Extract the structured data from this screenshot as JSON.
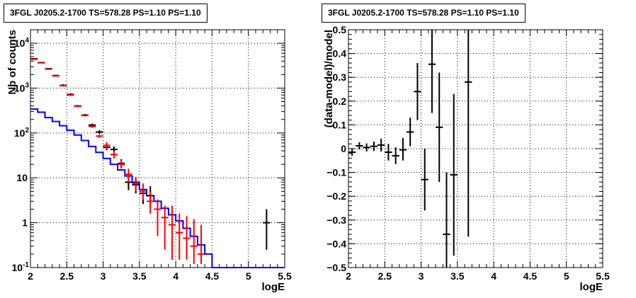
{
  "colors": {
    "data": "#000000",
    "model": "#0000ff",
    "model_points": "#ff0000",
    "grid": "#000000"
  },
  "chart_data": [
    {
      "type": "line",
      "title": "3FGL J0205.2-1700 TS=578.28 PS=1.10 PS=1.10",
      "xlabel": "logE",
      "ylabel": "Nb of counts",
      "xlim": [
        2,
        5.5
      ],
      "ylim": [
        0.1,
        20000
      ],
      "yscale": "log",
      "grid": true,
      "x_ticks": [
        "2",
        "2.5",
        "3",
        "3.5",
        "4",
        "4.5",
        "5",
        "5.5"
      ],
      "y_ticks": [
        {
          "value": 0.1,
          "label": "10",
          "sup": "-1"
        },
        {
          "value": 1,
          "label": "1",
          "sup": ""
        },
        {
          "value": 10,
          "label": "10",
          "sup": ""
        },
        {
          "value": 100,
          "label": "10",
          "sup": "2"
        },
        {
          "value": 1000,
          "label": "10",
          "sup": "3"
        },
        {
          "value": 10000,
          "label": "10",
          "sup": "4"
        }
      ],
      "bin_edges": [
        2.0,
        2.1,
        2.2,
        2.3,
        2.4,
        2.5,
        2.6,
        2.7,
        2.8,
        2.9,
        3.0,
        3.1,
        3.2,
        3.3,
        3.4,
        3.5,
        3.6,
        3.7,
        3.8,
        3.9,
        4.0,
        4.1,
        4.2,
        4.3,
        4.4,
        4.5,
        4.6,
        4.7,
        4.8,
        4.9,
        5.0,
        5.1,
        5.2,
        5.3,
        5.4,
        5.5
      ],
      "series": [
        {
          "role": "model-histogram",
          "values": [
            340,
            290,
            220,
            180,
            145,
            115,
            90,
            68,
            50,
            37,
            27,
            20,
            15,
            11,
            8,
            5.5,
            4,
            3,
            2.1,
            1.5,
            1.1,
            0.75,
            0.5,
            0.32,
            0.2,
            0.1,
            0.1,
            0.1,
            0.1,
            0.1,
            0.1,
            0.1,
            0.1,
            0.1,
            0.1
          ]
        },
        {
          "role": "data-points",
          "points": [
            {
              "x": 2.05,
              "y": 4500,
              "lo": 4370,
              "hi": 4630
            },
            {
              "x": 2.15,
              "y": 3700,
              "lo": 3580,
              "hi": 3820
            },
            {
              "x": 2.25,
              "y": 2700,
              "lo": 2600,
              "hi": 2800
            },
            {
              "x": 2.35,
              "y": 1900,
              "lo": 1810,
              "hi": 1990
            },
            {
              "x": 2.45,
              "y": 1150,
              "lo": 1080,
              "hi": 1220
            },
            {
              "x": 2.55,
              "y": 720,
              "lo": 670,
              "hi": 770
            },
            {
              "x": 2.65,
              "y": 400,
              "lo": 380,
              "hi": 420
            },
            {
              "x": 2.75,
              "y": 250,
              "lo": 234,
              "hi": 266
            },
            {
              "x": 2.85,
              "y": 150,
              "lo": 138,
              "hi": 162
            },
            {
              "x": 2.95,
              "y": 105,
              "lo": 95,
              "hi": 115
            },
            {
              "x": 3.05,
              "y": 48,
              "lo": 41,
              "hi": 55
            },
            {
              "x": 3.15,
              "y": 43,
              "lo": 36,
              "hi": 50
            },
            {
              "x": 3.25,
              "y": 21,
              "lo": 17,
              "hi": 26
            },
            {
              "x": 3.35,
              "y": 8,
              "lo": 5.3,
              "hi": 11
            },
            {
              "x": 3.45,
              "y": 7,
              "lo": 4.5,
              "hi": 10
            },
            {
              "x": 3.55,
              "y": 4.5,
              "lo": 2.6,
              "hi": 7.2
            },
            {
              "x": 3.65,
              "y": 4,
              "lo": 2.2,
              "hi": 6.5
            },
            {
              "x": 5.25,
              "y": 1,
              "lo": 0.25,
              "hi": 2
            }
          ]
        },
        {
          "role": "model-points",
          "points": [
            {
              "x": 2.05,
              "y": 4400,
              "lo": 4300,
              "hi": 4500
            },
            {
              "x": 2.15,
              "y": 3650,
              "lo": 3560,
              "hi": 3740
            },
            {
              "x": 2.25,
              "y": 2650,
              "lo": 2580,
              "hi": 2720
            },
            {
              "x": 2.35,
              "y": 1870,
              "lo": 1820,
              "hi": 1920
            },
            {
              "x": 2.45,
              "y": 1130,
              "lo": 1100,
              "hi": 1160
            },
            {
              "x": 2.55,
              "y": 700,
              "lo": 680,
              "hi": 720
            },
            {
              "x": 2.65,
              "y": 395,
              "lo": 383,
              "hi": 407
            },
            {
              "x": 2.75,
              "y": 245,
              "lo": 237,
              "hi": 253
            },
            {
              "x": 2.85,
              "y": 140,
              "lo": 130,
              "hi": 150
            },
            {
              "x": 2.95,
              "y": 85,
              "lo": 78,
              "hi": 92
            },
            {
              "x": 3.05,
              "y": 53,
              "lo": 45,
              "hi": 62
            },
            {
              "x": 3.15,
              "y": 33,
              "lo": 27,
              "hi": 39
            },
            {
              "x": 3.25,
              "y": 20,
              "lo": 16,
              "hi": 25
            },
            {
              "x": 3.35,
              "y": 12,
              "lo": 8,
              "hi": 16
            },
            {
              "x": 3.45,
              "y": 7.5,
              "lo": 5,
              "hi": 10.5
            },
            {
              "x": 3.55,
              "y": 5,
              "lo": 3.2,
              "hi": 7.5
            },
            {
              "x": 3.65,
              "y": 3,
              "lo": 1.6,
              "hi": 4.8
            },
            {
              "x": 3.75,
              "y": 2,
              "lo": 0.5,
              "hi": 3.3
            },
            {
              "x": 3.85,
              "y": 1.3,
              "lo": 0.25,
              "hi": 2.4
            },
            {
              "x": 3.95,
              "y": 0.9,
              "lo": 0.15,
              "hi": 2.4
            },
            {
              "x": 4.05,
              "y": 0.6,
              "lo": 0.15,
              "hi": 1.6
            },
            {
              "x": 4.15,
              "y": 0.45,
              "lo": 0.15,
              "hi": 1.4
            },
            {
              "x": 4.25,
              "y": 0.3,
              "lo": 0.12,
              "hi": 1.2
            },
            {
              "x": 4.35,
              "y": 0.2,
              "lo": 0.12,
              "hi": 0.9
            }
          ]
        }
      ]
    },
    {
      "type": "scatter",
      "title": "3FGL J0205.2-1700 TS=578.28 PS=1.10 PS=1.10",
      "xlabel": "logE",
      "ylabel": "(data-model)/model",
      "xlim": [
        2,
        5.5
      ],
      "ylim": [
        -0.5,
        0.5
      ],
      "grid": true,
      "x_ticks": [
        "2",
        "2.5",
        "3",
        "3.5",
        "4",
        "4.5",
        "5",
        "5.5"
      ],
      "y_ticks": [
        "-0.5",
        "-0.4",
        "-0.3",
        "-0.2",
        "-0.1",
        "0",
        "0.1",
        "0.2",
        "0.3",
        "0.4",
        "0.5"
      ],
      "series": [
        {
          "role": "residuals",
          "points": [
            {
              "x": 2.05,
              "y": -0.015,
              "lo": -0.03,
              "hi": 0.0
            },
            {
              "x": 2.15,
              "y": 0.012,
              "lo": -0.003,
              "hi": 0.027
            },
            {
              "x": 2.25,
              "y": 0.005,
              "lo": -0.012,
              "hi": 0.022
            },
            {
              "x": 2.35,
              "y": 0.01,
              "lo": -0.01,
              "hi": 0.03
            },
            {
              "x": 2.45,
              "y": 0.015,
              "lo": -0.012,
              "hi": 0.042
            },
            {
              "x": 2.55,
              "y": -0.015,
              "lo": -0.05,
              "hi": 0.02
            },
            {
              "x": 2.65,
              "y": -0.03,
              "lo": -0.065,
              "hi": 0.005
            },
            {
              "x": 2.75,
              "y": -0.005,
              "lo": -0.05,
              "hi": 0.045
            },
            {
              "x": 2.85,
              "y": 0.07,
              "lo": 0.01,
              "hi": 0.13
            },
            {
              "x": 2.95,
              "y": 0.24,
              "lo": 0.12,
              "hi": 0.36
            },
            {
              "x": 3.05,
              "y": -0.13,
              "lo": -0.26,
              "hi": 0.0
            },
            {
              "x": 3.15,
              "y": 0.355,
              "lo": 0.15,
              "hi": 0.5
            },
            {
              "x": 3.25,
              "y": 0.09,
              "lo": -0.14,
              "hi": 0.32
            },
            {
              "x": 3.35,
              "y": -0.36,
              "lo": -0.5,
              "hi": -0.1
            },
            {
              "x": 3.45,
              "y": -0.11,
              "lo": -0.45,
              "hi": 0.23
            },
            {
              "x": 3.65,
              "y": 0.28,
              "lo": -0.37,
              "hi": 0.5
            }
          ]
        }
      ]
    }
  ]
}
